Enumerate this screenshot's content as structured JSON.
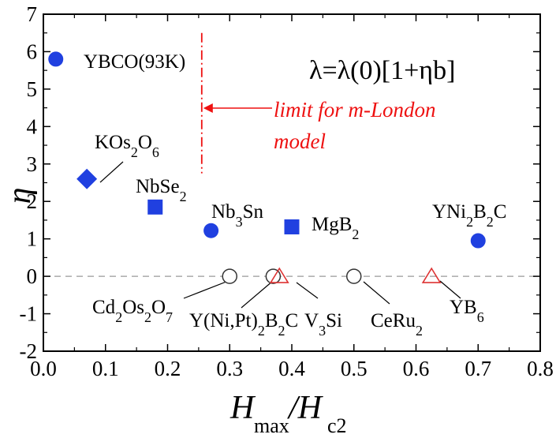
{
  "chart_data": {
    "type": "scatter",
    "xlabel_main": "H",
    "xlabel_main_sub": "max",
    "xlabel_slash": "/H",
    "xlabel_denom_sub": "c2",
    "ylabel": "η",
    "xlim": [
      0.0,
      0.8
    ],
    "ylim": [
      -2,
      7
    ],
    "xticks": [
      0.0,
      0.1,
      0.2,
      0.3,
      0.4,
      0.5,
      0.6,
      0.7,
      0.8
    ],
    "yticks": [
      -2,
      -1,
      0,
      1,
      2,
      3,
      4,
      5,
      6,
      7
    ],
    "xtick_labels": [
      "0.0",
      "0.1",
      "0.2",
      "0.3",
      "0.4",
      "0.5",
      "0.6",
      "0.7",
      "0.8"
    ],
    "ytick_labels": [
      "-2",
      "-1",
      "0",
      "1",
      "2",
      "3",
      "4",
      "5",
      "6",
      "7"
    ],
    "formula": "λ=λ(0)[1+ηb]",
    "limit_text_line1": "limit for m-London",
    "limit_text_line2": "model",
    "limit_x": 0.255,
    "zero_line": true,
    "colors": {
      "filled": "#2040e0",
      "open": "#333333",
      "triangle": "#dd3333",
      "limit": "#ee1111"
    },
    "points": [
      {
        "name": "YBCO(93K)",
        "x": 0.02,
        "y": 5.8,
        "marker": "circle-filled",
        "label_parts": [
          [
            "YBCO(93K)",
            false
          ]
        ]
      },
      {
        "name": "KOs2O6",
        "x": 0.07,
        "y": 2.6,
        "marker": "diamond-filled",
        "label_parts": [
          [
            "KOs",
            false
          ],
          [
            "2",
            true
          ],
          [
            "O",
            false
          ],
          [
            "6",
            true
          ]
        ]
      },
      {
        "name": "NbSe2",
        "x": 0.18,
        "y": 1.85,
        "marker": "square-filled",
        "label_parts": [
          [
            "NbSe",
            false
          ],
          [
            "2",
            true
          ]
        ]
      },
      {
        "name": "Nb3Sn",
        "x": 0.27,
        "y": 1.22,
        "marker": "circle-filled",
        "label_parts": [
          [
            "Nb",
            false
          ],
          [
            "3",
            true
          ],
          [
            "Sn",
            false
          ]
        ]
      },
      {
        "name": "MgB2",
        "x": 0.4,
        "y": 1.32,
        "marker": "square-filled",
        "label_parts": [
          [
            "MgB",
            false
          ],
          [
            "2",
            true
          ]
        ]
      },
      {
        "name": "YNi2B2C",
        "x": 0.7,
        "y": 0.95,
        "marker": "circle-filled",
        "label_parts": [
          [
            "YNi",
            false
          ],
          [
            "2",
            true
          ],
          [
            "B",
            false
          ],
          [
            "2",
            true
          ],
          [
            "C",
            false
          ]
        ]
      },
      {
        "name": "Cd2Os2O7",
        "x": 0.3,
        "y": 0.0,
        "marker": "circle-open",
        "label_parts": [
          [
            "Cd",
            false
          ],
          [
            "2",
            true
          ],
          [
            "Os",
            false
          ],
          [
            "2",
            true
          ],
          [
            "O",
            false
          ],
          [
            "7",
            true
          ]
        ]
      },
      {
        "name": "Y(Ni,Pt)2B2C",
        "x": 0.37,
        "y": 0.0,
        "marker": "circle-open",
        "label_parts": [
          [
            "Y(Ni,Pt)",
            false
          ],
          [
            "2",
            true
          ],
          [
            "B",
            false
          ],
          [
            "2",
            true
          ],
          [
            "C",
            false
          ]
        ]
      },
      {
        "name": "V3Si",
        "x": 0.38,
        "y": 0.0,
        "marker": "triangle-open",
        "label_parts": [
          [
            "V",
            false
          ],
          [
            "3",
            true
          ],
          [
            "Si",
            false
          ]
        ]
      },
      {
        "name": "CeRu2",
        "x": 0.5,
        "y": 0.0,
        "marker": "circle-open",
        "label_parts": [
          [
            "CeRu",
            false
          ],
          [
            "2",
            true
          ]
        ]
      },
      {
        "name": "YB6",
        "x": 0.625,
        "y": 0.0,
        "marker": "triangle-open",
        "label_parts": [
          [
            "YB",
            false
          ],
          [
            "6",
            true
          ]
        ]
      }
    ]
  }
}
